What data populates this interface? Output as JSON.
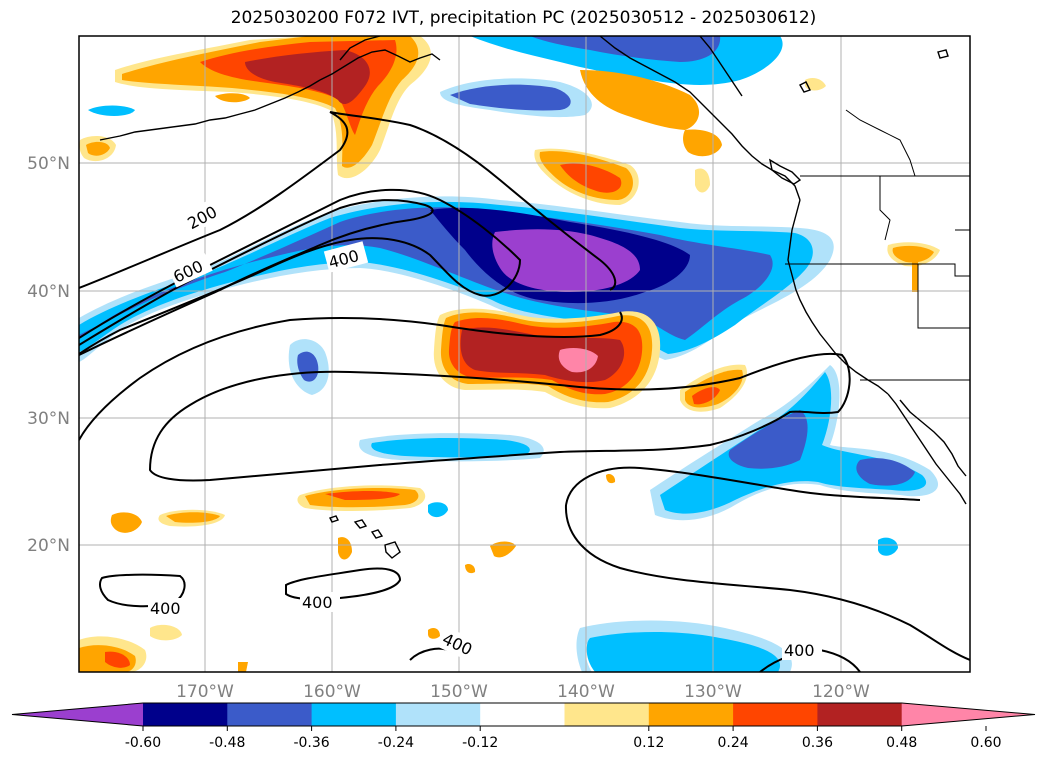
{
  "title": "2025030200 F072 IVT, precipitation PC (2025030512 - 2025030612)",
  "latitude_labels": [
    "50°N",
    "40°N",
    "30°N",
    "20°N"
  ],
  "longitude_labels": [
    "170°W",
    "160°W",
    "150°W",
    "140°W",
    "130°W",
    "120°W"
  ],
  "contour_labels": [
    "200",
    "600",
    "400",
    "400",
    "400",
    "400",
    "400"
  ],
  "colorbar": {
    "ticks": [
      "-0.60",
      "-0.48",
      "-0.36",
      "-0.24",
      "-0.12",
      "0.12",
      "0.24",
      "0.36",
      "0.48",
      "0.60"
    ],
    "colors": [
      "#9b3fcf",
      "#00008b",
      "#3b5bc9",
      "#00bfff",
      "#b0e2fa",
      "#ffffff",
      "#ffe68c",
      "#ffa500",
      "#ff4500",
      "#b22222",
      "#ff85a8"
    ]
  },
  "colors": {
    "contour": "#000000",
    "grid": "#b0b0b0",
    "coast": "#000000"
  }
}
